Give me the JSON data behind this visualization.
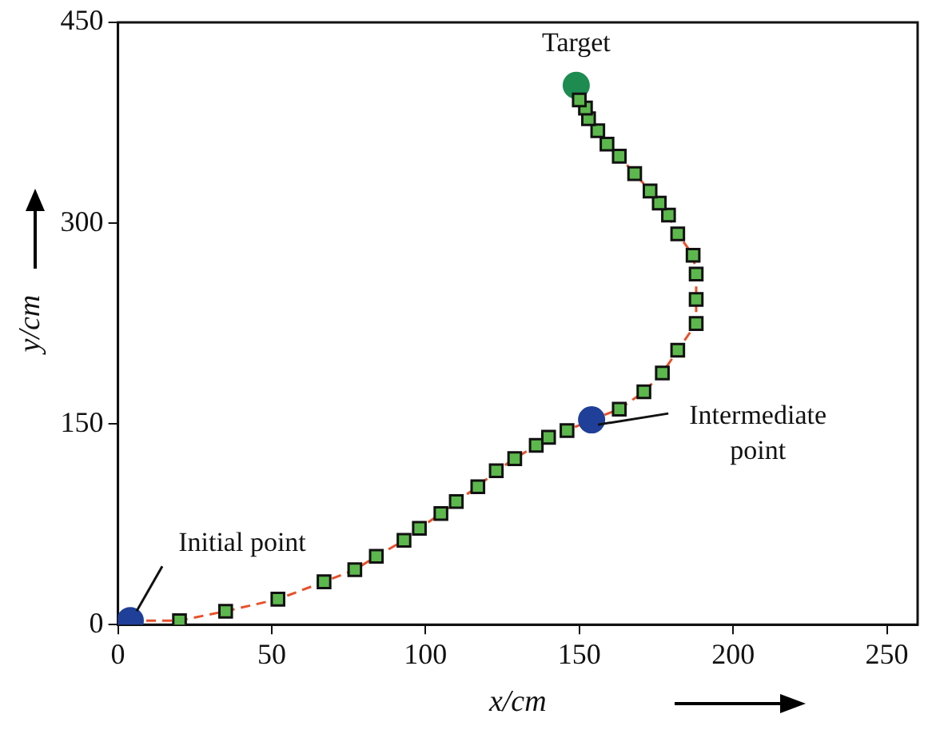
{
  "chart_data": {
    "type": "scatter",
    "xlabel": "x/cm",
    "ylabel": "y/cm",
    "xlim": [
      0,
      260
    ],
    "xticks": [
      0,
      50,
      100,
      150,
      200,
      250
    ],
    "ylim": [
      0,
      450
    ],
    "yticks": [
      0,
      150,
      300,
      450
    ],
    "grid": false,
    "legend": false,
    "series": [
      {
        "type": "line",
        "color": "#e8502a",
        "line_style": "dashed",
        "marker": "none",
        "x": [
          4,
          20,
          35,
          52,
          67,
          77,
          84,
          93,
          98,
          105,
          110,
          117,
          123,
          129,
          136,
          140,
          146,
          154,
          163,
          171,
          177,
          182,
          188,
          188,
          188,
          187,
          182,
          179,
          176,
          173,
          168,
          163,
          159
        ],
        "values": [
          3,
          3,
          10,
          19,
          32,
          41,
          51,
          63,
          72,
          83,
          92,
          103,
          115,
          124,
          134,
          140,
          145,
          153,
          161,
          174,
          188,
          205,
          225,
          243,
          262,
          276,
          292,
          306,
          315,
          324,
          337,
          350,
          359
        ]
      },
      {
        "type": "scatter",
        "color": "#5cb84c",
        "marker": "square",
        "x": [
          20,
          35,
          52,
          67,
          77,
          84,
          93,
          98,
          105,
          110,
          117,
          123,
          129,
          136,
          140,
          146,
          163,
          171,
          177,
          182,
          188,
          188,
          188,
          187,
          182,
          179,
          176,
          173,
          168,
          163,
          159,
          156,
          153,
          152,
          150
        ],
        "values": [
          3,
          10,
          19,
          32,
          41,
          51,
          63,
          72,
          83,
          92,
          103,
          115,
          124,
          134,
          140,
          145,
          161,
          174,
          188,
          205,
          225,
          243,
          262,
          276,
          292,
          306,
          315,
          324,
          337,
          350,
          359,
          369,
          378,
          386,
          392
        ]
      },
      {
        "type": "scatter",
        "colors": [
          "#1f3f99",
          "#1f3f99",
          "#1e8c50"
        ],
        "marker": "circle",
        "x": [
          4,
          154,
          149
        ],
        "values": [
          3,
          153,
          403
        ]
      }
    ],
    "annotations": [
      {
        "text": "Initial point",
        "x": 4,
        "y": 3
      },
      {
        "text": "Intermediate point",
        "x": 154,
        "y": 153
      },
      {
        "text": "Target",
        "x": 149,
        "y": 403
      }
    ]
  }
}
